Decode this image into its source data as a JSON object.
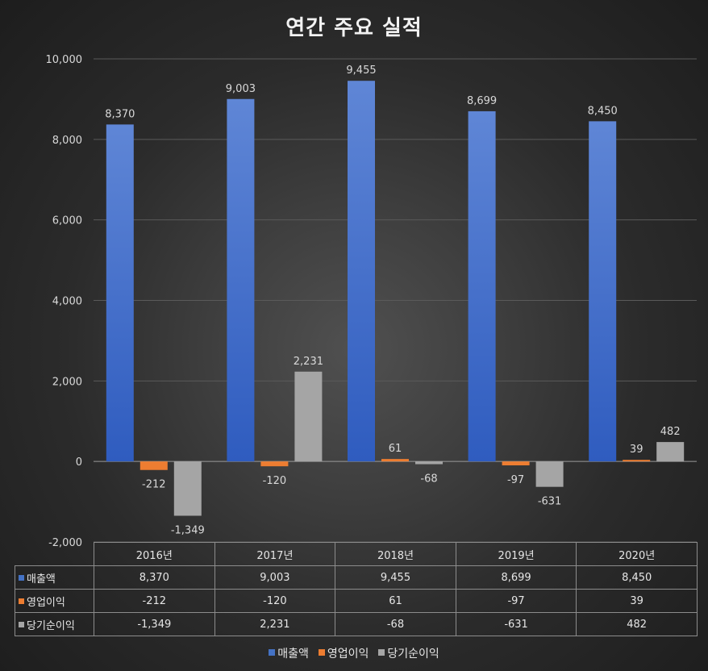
{
  "chart_data": {
    "type": "bar",
    "title": "연간 주요 실적",
    "categories": [
      "2016년",
      "2017년",
      "2018년",
      "2019년",
      "2020년"
    ],
    "series": [
      {
        "name": "매출액",
        "values": [
          8370,
          9003,
          9455,
          8699,
          8450
        ],
        "labels": [
          "8,370",
          "9,003",
          "9,455",
          "8,699",
          "8,450"
        ],
        "color": "#4472c4"
      },
      {
        "name": "영업이익",
        "values": [
          -212,
          -120,
          61,
          -97,
          39
        ],
        "labels": [
          "-212",
          "-120",
          "61",
          "-97",
          "39"
        ],
        "color": "#ed7d31"
      },
      {
        "name": "당기순이익",
        "values": [
          -1349,
          2231,
          -68,
          -631,
          482
        ],
        "labels": [
          "-1,349",
          "2,231",
          "-68",
          "-631",
          "482"
        ],
        "color": "#a5a5a5"
      }
    ],
    "ylim": [
      -2000,
      10000
    ],
    "yticks": [
      -2000,
      0,
      2000,
      4000,
      6000,
      8000,
      10000
    ],
    "ytick_labels": [
      "-2,000",
      "0",
      "2,000",
      "4,000",
      "6,000",
      "8,000",
      "10,000"
    ],
    "grid": true,
    "legend": "bottom",
    "data_table": true
  }
}
